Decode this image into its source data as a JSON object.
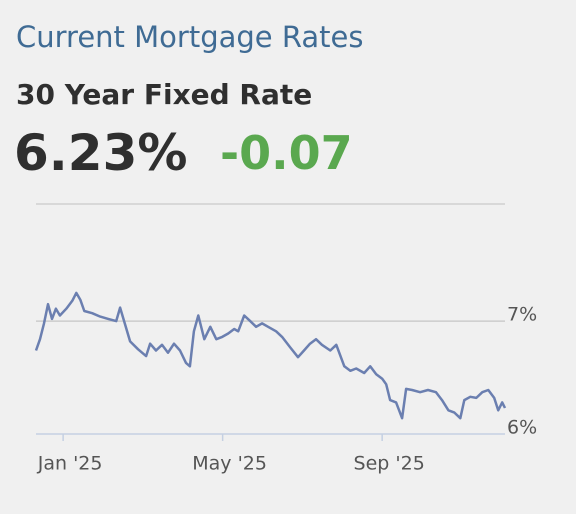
{
  "header": {
    "title": "Current Mortgage Rates",
    "subtitle": "30 Year Fixed Rate",
    "rate": "6.23%",
    "change": "-0.07"
  },
  "chart_data": {
    "type": "line",
    "x": [
      -0.68,
      -0.58,
      -0.48,
      -0.38,
      -0.28,
      -0.18,
      -0.08,
      0.08,
      0.23,
      0.33,
      0.43,
      0.53,
      0.73,
      0.93,
      1.13,
      1.33,
      1.43,
      1.53,
      1.68,
      1.88,
      2.08,
      2.18,
      2.33,
      2.48,
      2.63,
      2.78,
      2.93,
      3.08,
      3.18,
      3.28,
      3.39,
      3.54,
      3.69,
      3.84,
      3.99,
      4.14,
      4.29,
      4.39,
      4.54,
      4.69,
      4.84,
      4.99,
      5.14,
      5.34,
      5.49,
      5.69,
      5.89,
      6.04,
      6.19,
      6.34,
      6.49,
      6.7,
      6.85,
      7.05,
      7.2,
      7.35,
      7.55,
      7.7,
      7.85,
      8.0,
      8.1,
      8.2,
      8.35,
      8.5,
      8.6,
      8.75,
      8.95,
      9.15,
      9.35,
      9.5,
      9.66,
      9.81,
      9.96,
      10.06,
      10.21,
      10.36,
      10.51,
      10.66,
      10.81,
      10.91,
      11.01,
      11.08
    ],
    "values": [
      6.74,
      6.84,
      6.98,
      7.15,
      7.02,
      7.11,
      7.05,
      7.11,
      7.18,
      7.25,
      7.19,
      7.09,
      7.07,
      7.04,
      7.02,
      7.0,
      7.12,
      7.0,
      6.82,
      6.75,
      6.69,
      6.8,
      6.74,
      6.79,
      6.72,
      6.8,
      6.74,
      6.63,
      6.6,
      6.91,
      7.05,
      6.84,
      6.95,
      6.84,
      6.86,
      6.89,
      6.93,
      6.91,
      7.05,
      7.0,
      6.95,
      6.98,
      6.95,
      6.91,
      6.86,
      6.77,
      6.68,
      6.74,
      6.8,
      6.84,
      6.79,
      6.74,
      6.79,
      6.6,
      6.56,
      6.58,
      6.54,
      6.6,
      6.53,
      6.49,
      6.44,
      6.3,
      6.28,
      6.14,
      6.4,
      6.39,
      6.37,
      6.39,
      6.37,
      6.3,
      6.21,
      6.19,
      6.14,
      6.3,
      6.33,
      6.32,
      6.37,
      6.39,
      6.32,
      6.21,
      6.28,
      6.23
    ],
    "color": "#6b7fb0",
    "xlim": [
      -0.68,
      11.08
    ],
    "xticks": [
      {
        "value": 0,
        "label": "Jan '25"
      },
      {
        "value": 4,
        "label": "May '25"
      },
      {
        "value": 8,
        "label": "Sep '25"
      }
    ],
    "ylim": [
      6,
      8.02
    ],
    "yticks": [
      {
        "value": 6,
        "label": "6%"
      },
      {
        "value": 7,
        "label": "7%"
      }
    ],
    "grid": true
  }
}
